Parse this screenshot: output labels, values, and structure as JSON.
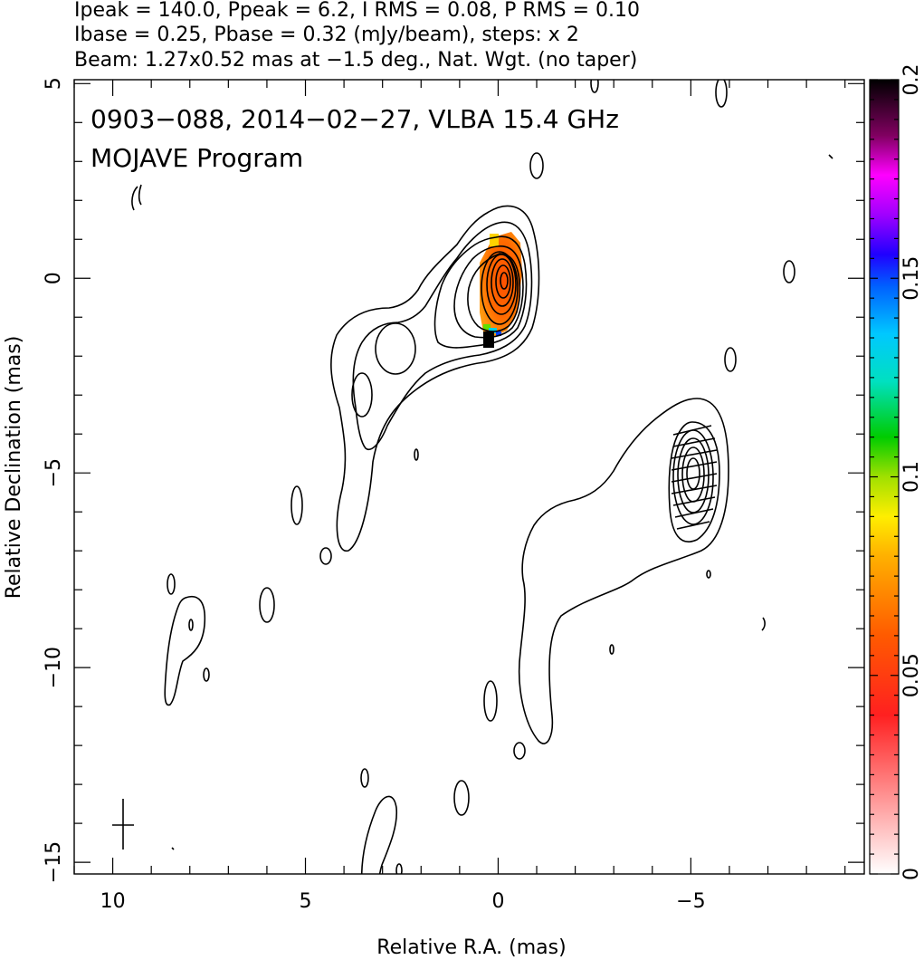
{
  "chart_data": {
    "type": "contour",
    "header": [
      "Ipeak = 140.0, Ppeak = 6.2, I RMS = 0.08, P RMS = 0.10",
      "Ibase = 0.25, Pbase = 0.32 (mJy/beam), steps: x 2",
      "Beam: 1.27x0.52 mas at −1.5 deg., Nat. Wgt. (no taper)"
    ],
    "annotations": [
      "0903−088, 2014−02−27, VLBA 15.4 GHz",
      "MOJAVE Program"
    ],
    "xlabel": "Relative R.A. (mas)",
    "ylabel": "Relative Declination (mas)",
    "xlim": [
      11,
      -9.5
    ],
    "ylim": [
      -15.3,
      5.1
    ],
    "xticks": [
      10,
      5,
      0,
      -5
    ],
    "xtick_labels": [
      "10",
      "5",
      "0",
      "−5"
    ],
    "yticks": [
      5,
      0,
      -5,
      -10,
      -15
    ],
    "ytick_labels": [
      "5",
      "0",
      "−5",
      "−10",
      "−15"
    ],
    "colorbar": {
      "min": 0,
      "max": 0.2,
      "ticks": [
        0,
        0.05,
        0.1,
        0.15,
        0.2
      ],
      "tick_labels": [
        "0",
        "0.05",
        "0.1",
        "0.15",
        "0.2"
      ]
    },
    "core": {
      "x": 0,
      "y": 0
    },
    "knot": {
      "x": -4.9,
      "y": -5.0
    },
    "beam": {
      "major_mas": 1.27,
      "minor_mas": 0.52,
      "pa_deg": -1.5
    }
  }
}
